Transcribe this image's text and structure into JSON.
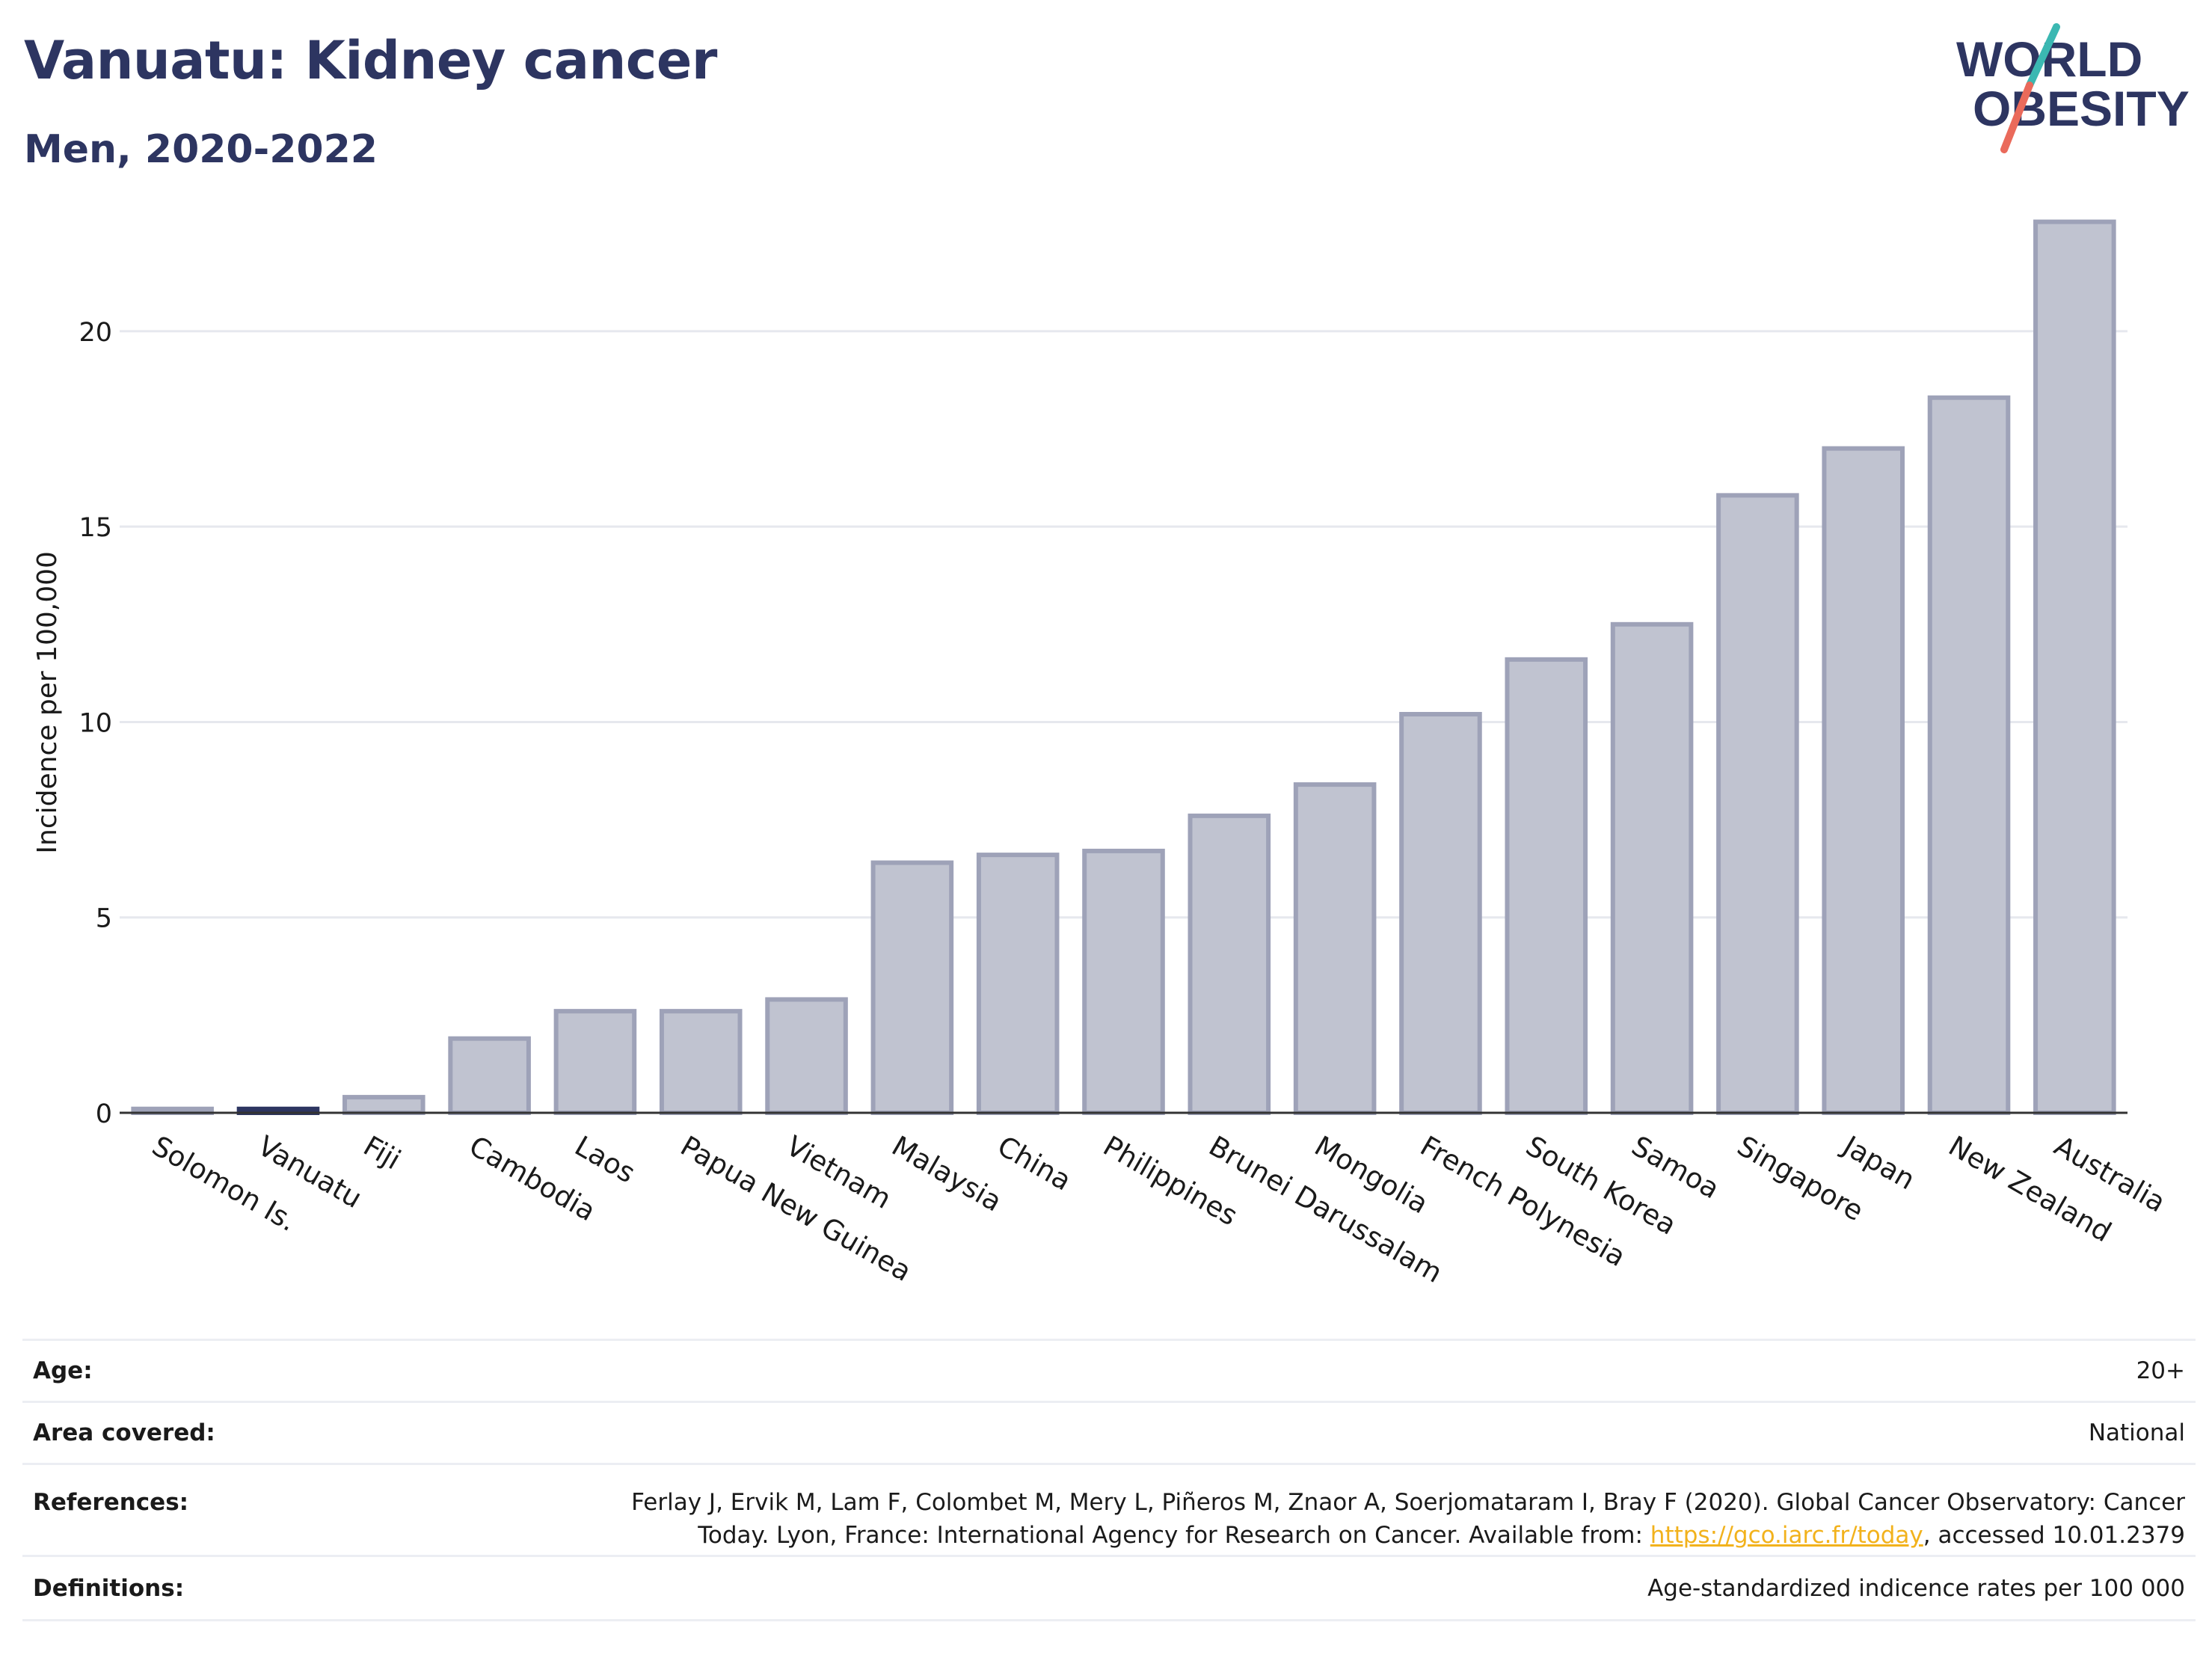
{
  "header": {
    "title": "Vanuatu: Kidney cancer",
    "subtitle": "Men, 2020-2022",
    "logo_line1": "WORLD",
    "logo_line2": "OBESITY"
  },
  "colors": {
    "title": "#2d3561",
    "bar_fill": "#c0c3d0",
    "bar_stroke": "#9ea2b8",
    "highlight": "#2d3561",
    "logo_teal": "#3bb8b2",
    "logo_coral": "#ea6a5b",
    "link": "#f2b21c"
  },
  "chart_data": {
    "type": "bar",
    "title": "Vanuatu: Kidney cancer",
    "subtitle": "Men, 2020-2022",
    "ylabel": "Incidence per 100,000",
    "xlabel": "",
    "ylim": [
      0,
      23.5
    ],
    "yticks": [
      0,
      5,
      10,
      15,
      20
    ],
    "grid": true,
    "highlight": "Vanuatu",
    "categories": [
      "Solomon Is.",
      "Vanuatu",
      "Fiji",
      "Cambodia",
      "Laos",
      "Papua New Guinea",
      "Vietnam",
      "Malaysia",
      "China",
      "Philippines",
      "Brunei Darussalam",
      "Mongolia",
      "French Polynesia",
      "South Korea",
      "Samoa",
      "Singapore",
      "Japan",
      "New Zealand",
      "Australia"
    ],
    "values": [
      0.1,
      0.1,
      0.4,
      1.9,
      2.6,
      2.6,
      2.9,
      6.4,
      6.6,
      6.7,
      7.6,
      8.4,
      10.2,
      11.6,
      12.5,
      15.8,
      17.0,
      18.3,
      22.8
    ]
  },
  "info": {
    "age_label": "Age:",
    "age_value": "20+",
    "area_label": "Area covered:",
    "area_value": "National",
    "references_label": "References:",
    "references_line1": "Ferlay J, Ervik M, Lam F, Colombet M, Mery L, Piñeros M, Znaor A, Soerjomataram I, Bray F (2020). Global Cancer Observatory: Cancer",
    "references_line2_pre": "Today. Lyon, France: International Agency for Research on Cancer. Available from: ",
    "references_link": "https://gco.iarc.fr/today",
    "references_line2_post": ", accessed 10.01.2379",
    "definitions_label": "Definitions:",
    "definitions_value": "Age-standardized indicence rates per 100 000"
  }
}
